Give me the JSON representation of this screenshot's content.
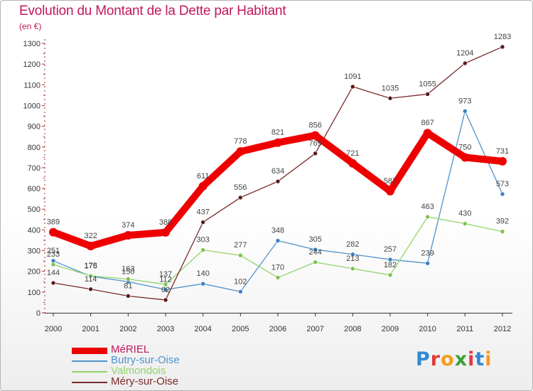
{
  "title": "Evolution du Montant de la Dette par Habitant",
  "subtitle": "(en €)",
  "logo_letters": [
    {
      "ch": "P",
      "color": "#2e8bd6"
    },
    {
      "ch": "r",
      "color": "#e23b3b"
    },
    {
      "ch": "o",
      "color": "#f59b1c"
    },
    {
      "ch": "x",
      "color": "#3aa13a"
    },
    {
      "ch": "i",
      "color": "#e23b3b"
    },
    {
      "ch": "t",
      "color": "#2e8bd6"
    },
    {
      "ch": "i",
      "color": "#f59b1c"
    }
  ],
  "chart_data": {
    "type": "line",
    "x": [
      "2000",
      "2001",
      "2002",
      "2003",
      "2004",
      "2005",
      "2006",
      "2007",
      "2008",
      "2009",
      "2010",
      "2011",
      "2012"
    ],
    "ylim": [
      0,
      1300
    ],
    "yticks": [
      0,
      100,
      200,
      300,
      400,
      500,
      600,
      700,
      800,
      900,
      1000,
      1100,
      1200,
      1300
    ],
    "grid": false,
    "legend_position": "bottom-left",
    "series": [
      {
        "name": "MéRIEL",
        "color": "#ee0000",
        "line_width": 10,
        "marker_color": "#ee0000",
        "values": [
          389,
          322,
          374,
          388,
          611,
          778,
          821,
          856,
          721,
          587,
          867,
          750,
          731
        ]
      },
      {
        "name": "Butry-sur-Oise",
        "color": "#4e93cc",
        "line_width": 1.3,
        "marker_color": "#3a7fc0",
        "values": [
          251,
          176,
          150,
          112,
          140,
          102,
          348,
          305,
          282,
          257,
          239,
          973,
          573
        ]
      },
      {
        "name": "Valmondois",
        "color": "#92d36b",
        "line_width": 1.3,
        "marker_color": "#7cc24f",
        "values": [
          233,
          178,
          163,
          137,
          303,
          277,
          170,
          244,
          213,
          182,
          463,
          430,
          392
        ]
      },
      {
        "name": "Méry-sur-Oise",
        "color": "#7a2a2a",
        "line_width": 1.3,
        "marker_color": "#5a1a1a",
        "values": [
          144,
          114,
          81,
          62,
          437,
          556,
          634,
          769,
          1091,
          1035,
          1055,
          1204,
          1283
        ]
      }
    ]
  }
}
